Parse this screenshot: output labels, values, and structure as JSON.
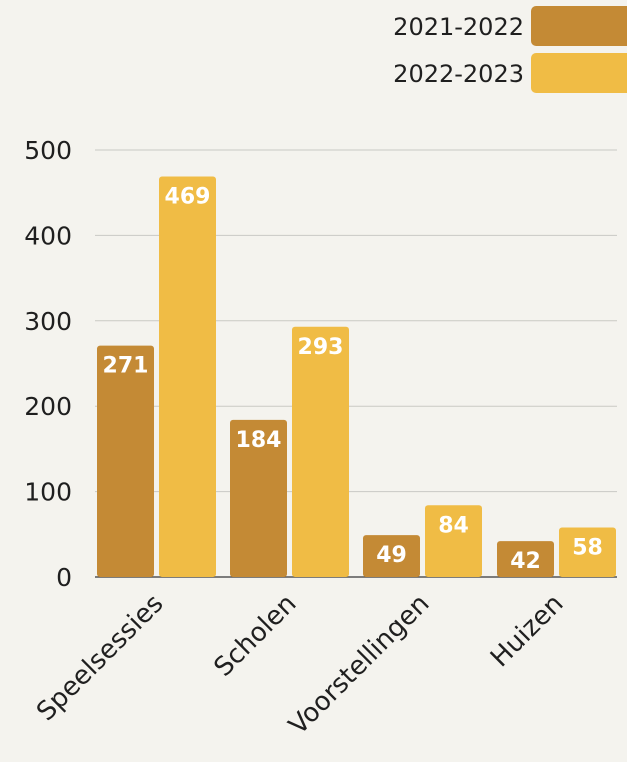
{
  "chart_data": {
    "type": "bar",
    "categories": [
      "Speelsessies",
      "Scholen",
      "Voorstellingen",
      "Huizen"
    ],
    "series": [
      {
        "name": "2021-2022",
        "color": "#c48a35",
        "values": [
          271,
          184,
          49,
          42
        ]
      },
      {
        "name": "2022-2023",
        "color": "#f0bc45",
        "values": [
          469,
          293,
          84,
          58
        ]
      }
    ],
    "yticks": [
      0,
      100,
      200,
      300,
      400,
      500
    ],
    "ylim": [
      0,
      500
    ],
    "grid": true,
    "legend": "top-right",
    "data_labels": true,
    "title": "",
    "xlabel": "",
    "ylabel": ""
  }
}
